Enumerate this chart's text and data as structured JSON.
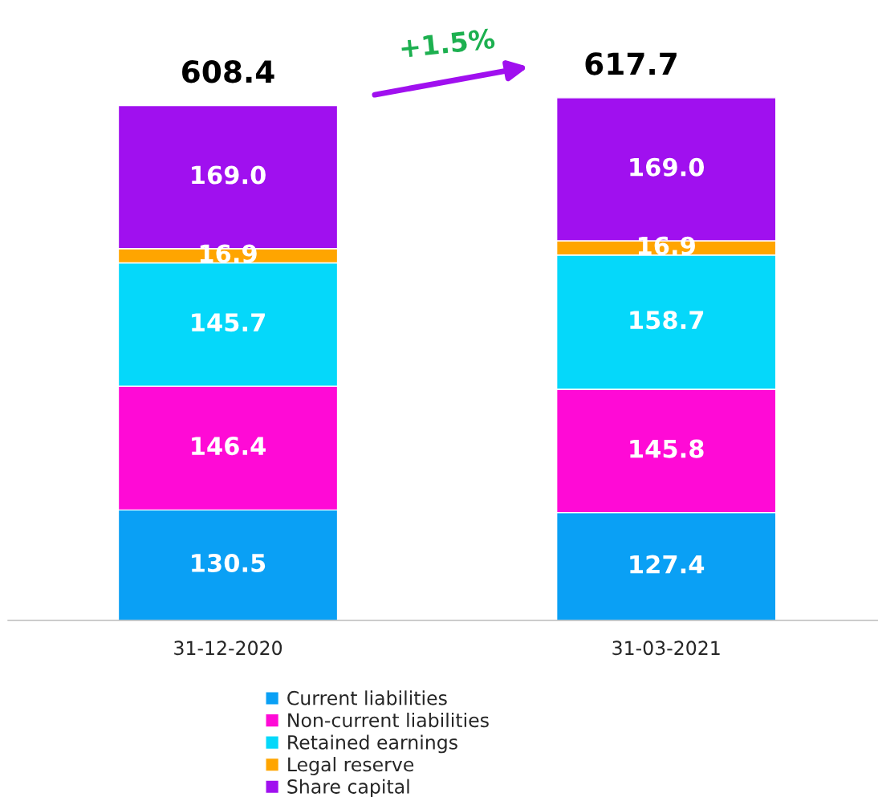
{
  "chart_data": {
    "type": "bar",
    "stacked": true,
    "categories": [
      "31-12-2020",
      "31-03-2021"
    ],
    "series": [
      {
        "name": "Current liabilities",
        "color": "#0aa0f5",
        "values": [
          130.5,
          127.4
        ],
        "value_labels": [
          "130.5",
          "127.4"
        ]
      },
      {
        "name": "Non-current liabilities",
        "color": "#ff0ad6",
        "values": [
          146.4,
          145.8
        ],
        "value_labels": [
          "146.4",
          "145.8"
        ]
      },
      {
        "name": "Retained earnings",
        "color": "#05d8fa",
        "values": [
          145.7,
          158.7
        ],
        "value_labels": [
          "145.7",
          "158.7"
        ]
      },
      {
        "name": "Legal reserve",
        "color": "#ffa500",
        "values": [
          16.9,
          16.9
        ],
        "value_labels": [
          "16.9",
          "16.9"
        ]
      },
      {
        "name": "Share capital",
        "color": "#a010ef",
        "values": [
          169.0,
          169.0
        ],
        "value_labels": [
          "169.0",
          "169.0"
        ]
      }
    ],
    "totals": [
      "608.4",
      "617.7"
    ],
    "annotations": [
      "+1.5%"
    ],
    "legend": "bottom",
    "grid": false
  }
}
